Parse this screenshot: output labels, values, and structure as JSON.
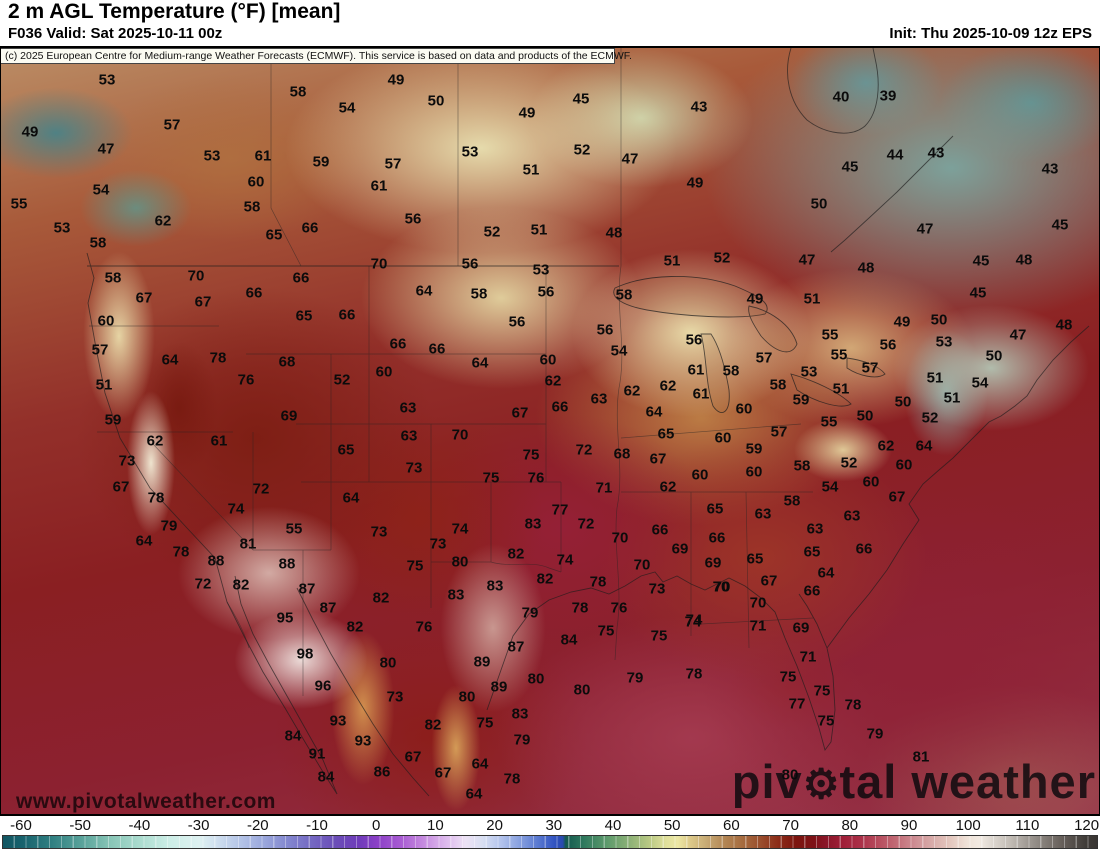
{
  "header": {
    "title": "2 m AGL Temperature (°F) [mean]",
    "valid": "F036 Valid: Sat 2025-10-11 00z",
    "init": "Init: Thu 2025-10-09 12z EPS"
  },
  "copyright": "(c) 2025 European Centre for Medium-range Weather Forecasts (ECMWF). This service is based on data and products of the ECMWF.",
  "watermark": "www.pivotalweather.com",
  "logo": {
    "part1": "piv",
    "gear_glyph": "⚙",
    "part2": "tal weather"
  },
  "chart_data": {
    "type": "heatmap",
    "title": "2 m AGL Temperature (°F) [mean]",
    "units": "°F",
    "model": "ECMWF EPS",
    "labels": [
      [
        107,
        80,
        53
      ],
      [
        298,
        92,
        58
      ],
      [
        347,
        108,
        54
      ],
      [
        30,
        132,
        49
      ],
      [
        172,
        125,
        57
      ],
      [
        106,
        149,
        47
      ],
      [
        212,
        156,
        53
      ],
      [
        263,
        156,
        61
      ],
      [
        321,
        162,
        59
      ],
      [
        256,
        182,
        60
      ],
      [
        101,
        190,
        54
      ],
      [
        252,
        207,
        58
      ],
      [
        19,
        204,
        55
      ],
      [
        163,
        221,
        62
      ],
      [
        62,
        228,
        53
      ],
      [
        274,
        235,
        65
      ],
      [
        310,
        228,
        66
      ],
      [
        98,
        243,
        58
      ],
      [
        396,
        80,
        49
      ],
      [
        436,
        101,
        50
      ],
      [
        581,
        99,
        45
      ],
      [
        527,
        113,
        49
      ],
      [
        699,
        107,
        43
      ],
      [
        470,
        152,
        53
      ],
      [
        582,
        150,
        52
      ],
      [
        630,
        159,
        47
      ],
      [
        393,
        164,
        57
      ],
      [
        531,
        170,
        51
      ],
      [
        379,
        186,
        61
      ],
      [
        695,
        183,
        49
      ],
      [
        413,
        219,
        56
      ],
      [
        492,
        232,
        52
      ],
      [
        539,
        230,
        51
      ],
      [
        614,
        233,
        48
      ],
      [
        841,
        97,
        40
      ],
      [
        888,
        96,
        39
      ],
      [
        895,
        155,
        44
      ],
      [
        936,
        153,
        43
      ],
      [
        850,
        167,
        45
      ],
      [
        1050,
        169,
        43
      ],
      [
        819,
        204,
        50
      ],
      [
        925,
        229,
        47
      ],
      [
        1060,
        225,
        45
      ],
      [
        113,
        278,
        58
      ],
      [
        196,
        276,
        70
      ],
      [
        254,
        293,
        66
      ],
      [
        301,
        278,
        66
      ],
      [
        144,
        298,
        67
      ],
      [
        203,
        302,
        67
      ],
      [
        106,
        321,
        60
      ],
      [
        304,
        316,
        65
      ],
      [
        347,
        315,
        66
      ],
      [
        100,
        350,
        57
      ],
      [
        170,
        360,
        64
      ],
      [
        218,
        358,
        78
      ],
      [
        287,
        362,
        68
      ],
      [
        246,
        380,
        76
      ],
      [
        342,
        380,
        52
      ],
      [
        104,
        385,
        51
      ],
      [
        113,
        420,
        59
      ],
      [
        289,
        416,
        69
      ],
      [
        379,
        264,
        70
      ],
      [
        470,
        264,
        56
      ],
      [
        541,
        270,
        53
      ],
      [
        672,
        261,
        51
      ],
      [
        722,
        258,
        52
      ],
      [
        424,
        291,
        64
      ],
      [
        479,
        294,
        58
      ],
      [
        546,
        292,
        56
      ],
      [
        624,
        295,
        58
      ],
      [
        517,
        322,
        56
      ],
      [
        605,
        330,
        56
      ],
      [
        694,
        340,
        56
      ],
      [
        398,
        344,
        66
      ],
      [
        437,
        349,
        66
      ],
      [
        619,
        351,
        54
      ],
      [
        480,
        363,
        64
      ],
      [
        548,
        360,
        60
      ],
      [
        384,
        372,
        60
      ],
      [
        696,
        370,
        61
      ],
      [
        731,
        371,
        58
      ],
      [
        553,
        381,
        62
      ],
      [
        632,
        391,
        62
      ],
      [
        668,
        386,
        62
      ],
      [
        701,
        394,
        61
      ],
      [
        408,
        408,
        63
      ],
      [
        599,
        399,
        63
      ],
      [
        560,
        407,
        66
      ],
      [
        654,
        412,
        64
      ],
      [
        520,
        413,
        67
      ],
      [
        409,
        436,
        63
      ],
      [
        460,
        435,
        70
      ],
      [
        666,
        434,
        65
      ],
      [
        807,
        260,
        47
      ],
      [
        866,
        268,
        48
      ],
      [
        981,
        261,
        45
      ],
      [
        1024,
        260,
        48
      ],
      [
        978,
        293,
        45
      ],
      [
        755,
        299,
        49
      ],
      [
        812,
        299,
        51
      ],
      [
        902,
        322,
        49
      ],
      [
        939,
        320,
        50
      ],
      [
        1064,
        325,
        48
      ],
      [
        830,
        335,
        55
      ],
      [
        944,
        342,
        53
      ],
      [
        1018,
        335,
        47
      ],
      [
        888,
        345,
        56
      ],
      [
        839,
        355,
        55
      ],
      [
        994,
        356,
        50
      ],
      [
        764,
        358,
        57
      ],
      [
        870,
        368,
        57
      ],
      [
        809,
        372,
        53
      ],
      [
        935,
        378,
        51
      ],
      [
        980,
        383,
        54
      ],
      [
        778,
        385,
        58
      ],
      [
        841,
        389,
        51
      ],
      [
        952,
        398,
        51
      ],
      [
        801,
        400,
        59
      ],
      [
        744,
        409,
        60
      ],
      [
        903,
        402,
        50
      ],
      [
        865,
        416,
        50
      ],
      [
        829,
        422,
        55
      ],
      [
        930,
        418,
        52
      ],
      [
        779,
        432,
        57
      ],
      [
        155,
        441,
        62
      ],
      [
        219,
        441,
        61
      ],
      [
        346,
        450,
        65
      ],
      [
        127,
        461,
        73
      ],
      [
        121,
        487,
        67
      ],
      [
        261,
        489,
        72
      ],
      [
        351,
        498,
        64
      ],
      [
        156,
        498,
        78
      ],
      [
        236,
        509,
        74
      ],
      [
        294,
        529,
        55
      ],
      [
        169,
        526,
        79
      ],
      [
        144,
        541,
        64
      ],
      [
        248,
        544,
        81
      ],
      [
        181,
        552,
        78
      ],
      [
        216,
        561,
        88
      ],
      [
        287,
        564,
        88
      ],
      [
        307,
        589,
        87
      ],
      [
        203,
        584,
        72
      ],
      [
        241,
        585,
        82
      ],
      [
        328,
        608,
        87
      ],
      [
        285,
        618,
        95
      ],
      [
        355,
        627,
        82
      ],
      [
        531,
        455,
        75
      ],
      [
        584,
        450,
        72
      ],
      [
        622,
        454,
        68
      ],
      [
        723,
        438,
        60
      ],
      [
        658,
        459,
        67
      ],
      [
        414,
        468,
        73
      ],
      [
        491,
        478,
        75
      ],
      [
        536,
        478,
        76
      ],
      [
        700,
        475,
        60
      ],
      [
        668,
        487,
        62
      ],
      [
        604,
        488,
        71
      ],
      [
        715,
        509,
        65
      ],
      [
        560,
        510,
        77
      ],
      [
        533,
        524,
        83
      ],
      [
        586,
        524,
        72
      ],
      [
        379,
        532,
        73
      ],
      [
        460,
        529,
        74
      ],
      [
        620,
        538,
        70
      ],
      [
        660,
        530,
        66
      ],
      [
        717,
        538,
        66
      ],
      [
        438,
        544,
        73
      ],
      [
        680,
        549,
        69
      ],
      [
        516,
        554,
        82
      ],
      [
        565,
        560,
        74
      ],
      [
        415,
        566,
        75
      ],
      [
        460,
        562,
        80
      ],
      [
        642,
        565,
        70
      ],
      [
        713,
        563,
        69
      ],
      [
        545,
        579,
        82
      ],
      [
        598,
        582,
        78
      ],
      [
        495,
        586,
        83
      ],
      [
        657,
        589,
        73
      ],
      [
        721,
        587,
        70
      ],
      [
        456,
        595,
        83
      ],
      [
        381,
        598,
        82
      ],
      [
        530,
        613,
        79
      ],
      [
        580,
        608,
        78
      ],
      [
        619,
        608,
        76
      ],
      [
        694,
        620,
        74
      ],
      [
        754,
        449,
        59
      ],
      [
        802,
        466,
        58
      ],
      [
        849,
        463,
        52
      ],
      [
        886,
        446,
        62
      ],
      [
        924,
        446,
        64
      ],
      [
        754,
        472,
        60
      ],
      [
        904,
        465,
        60
      ],
      [
        830,
        487,
        54
      ],
      [
        871,
        482,
        60
      ],
      [
        792,
        501,
        58
      ],
      [
        897,
        497,
        67
      ],
      [
        763,
        514,
        63
      ],
      [
        852,
        516,
        63
      ],
      [
        815,
        529,
        63
      ],
      [
        812,
        552,
        65
      ],
      [
        864,
        549,
        66
      ],
      [
        755,
        559,
        65
      ],
      [
        826,
        573,
        64
      ],
      [
        769,
        581,
        67
      ],
      [
        812,
        591,
        66
      ],
      [
        758,
        603,
        70
      ],
      [
        722,
        587,
        70
      ],
      [
        305,
        654,
        98
      ],
      [
        323,
        686,
        96
      ],
      [
        338,
        721,
        93
      ],
      [
        363,
        741,
        93
      ],
      [
        293,
        736,
        84
      ],
      [
        317,
        754,
        91
      ],
      [
        326,
        777,
        84
      ],
      [
        424,
        627,
        76
      ],
      [
        606,
        631,
        75
      ],
      [
        659,
        636,
        75
      ],
      [
        569,
        640,
        84
      ],
      [
        516,
        647,
        87
      ],
      [
        388,
        663,
        80
      ],
      [
        482,
        662,
        89
      ],
      [
        536,
        679,
        80
      ],
      [
        694,
        674,
        78
      ],
      [
        635,
        678,
        79
      ],
      [
        582,
        690,
        80
      ],
      [
        395,
        697,
        73
      ],
      [
        499,
        687,
        89
      ],
      [
        467,
        697,
        80
      ],
      [
        520,
        714,
        83
      ],
      [
        433,
        725,
        82
      ],
      [
        485,
        723,
        75
      ],
      [
        522,
        740,
        79
      ],
      [
        413,
        757,
        67
      ],
      [
        480,
        764,
        64
      ],
      [
        382,
        772,
        86
      ],
      [
        443,
        773,
        67
      ],
      [
        512,
        779,
        78
      ],
      [
        474,
        794,
        64
      ],
      [
        693,
        622,
        74
      ],
      [
        758,
        626,
        71
      ],
      [
        801,
        628,
        69
      ],
      [
        808,
        657,
        71
      ],
      [
        788,
        677,
        75
      ],
      [
        822,
        691,
        75
      ],
      [
        797,
        704,
        77
      ],
      [
        853,
        705,
        78
      ],
      [
        826,
        721,
        75
      ],
      [
        875,
        734,
        79
      ],
      [
        921,
        757,
        81
      ],
      [
        790,
        775,
        80
      ]
    ],
    "colorbar": {
      "min": -60,
      "max": 120,
      "ticks": [
        -60,
        -50,
        -40,
        -30,
        -20,
        -10,
        0,
        10,
        20,
        30,
        40,
        50,
        60,
        70,
        80,
        90,
        100,
        110,
        120
      ],
      "gradient": [
        [
          -66,
          "#0d4a57"
        ],
        [
          -60,
          "#17626d"
        ],
        [
          -55,
          "#2f7f81"
        ],
        [
          -50,
          "#58a29a"
        ],
        [
          -45,
          "#88c6b7"
        ],
        [
          -40,
          "#abdccf"
        ],
        [
          -35,
          "#cdeee7"
        ],
        [
          -30,
          "#def1f1"
        ],
        [
          -27,
          "#cfdfef"
        ],
        [
          -23,
          "#b4c4e7"
        ],
        [
          -19,
          "#9aa7dc"
        ],
        [
          -15,
          "#8387cf"
        ],
        [
          -11,
          "#7468c3"
        ],
        [
          -7,
          "#6b4eb8"
        ],
        [
          -3,
          "#6f3cba"
        ],
        [
          0,
          "#8a3fc6"
        ],
        [
          4,
          "#a75ad2"
        ],
        [
          7,
          "#bf7fdc"
        ],
        [
          10,
          "#d3a5e7"
        ],
        [
          13,
          "#e3c7f0"
        ],
        [
          15,
          "#ede2f5"
        ],
        [
          18,
          "#d8dff2"
        ],
        [
          21,
          "#b4c4ec"
        ],
        [
          24,
          "#8ba3e0"
        ],
        [
          27,
          "#5e7dd2"
        ],
        [
          30,
          "#3355c2"
        ],
        [
          31.5,
          "#2a49ae"
        ],
        [
          32,
          "#14594f"
        ],
        [
          35,
          "#2e785d"
        ],
        [
          39,
          "#5d9a6c"
        ],
        [
          43,
          "#8fb277"
        ],
        [
          46,
          "#b7c883"
        ],
        [
          49,
          "#e0e09c"
        ],
        [
          51,
          "#ece7a4"
        ],
        [
          53,
          "#ddca8a"
        ],
        [
          56,
          "#c6a873"
        ],
        [
          59,
          "#b28553"
        ],
        [
          62,
          "#a66b3f"
        ],
        [
          65,
          "#9a4e2d"
        ],
        [
          68,
          "#8c2c18"
        ],
        [
          71,
          "#7c140e"
        ],
        [
          74,
          "#7e1116"
        ],
        [
          76,
          "#8a1628"
        ],
        [
          79,
          "#a01f38"
        ],
        [
          82,
          "#ab3048"
        ],
        [
          85,
          "#b74d5e"
        ],
        [
          88,
          "#c26b76"
        ],
        [
          91,
          "#cd8c92"
        ],
        [
          94,
          "#d8aba9"
        ],
        [
          97,
          "#e3c6bd"
        ],
        [
          100,
          "#efe2d8"
        ],
        [
          102,
          "#f2eae2"
        ],
        [
          104,
          "#dfd9d2"
        ],
        [
          107,
          "#c5bfb8"
        ],
        [
          110,
          "#a29c96"
        ],
        [
          113,
          "#847e78"
        ],
        [
          116,
          "#665f5a"
        ],
        [
          120,
          "#403c39"
        ],
        [
          123,
          "#35322f"
        ]
      ]
    }
  }
}
